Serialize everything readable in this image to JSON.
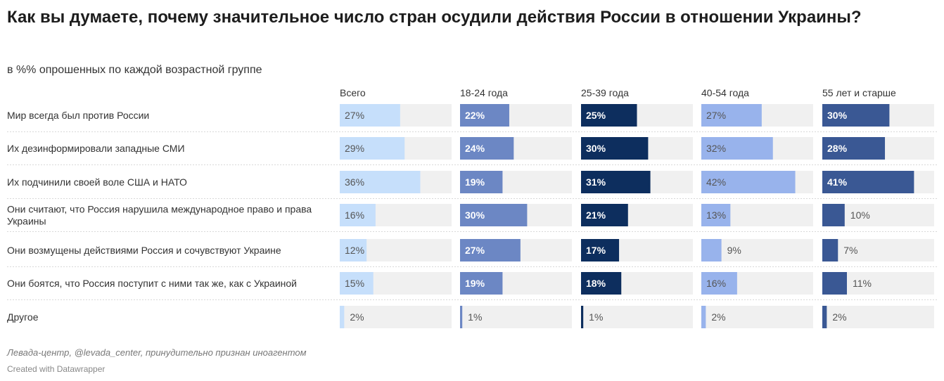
{
  "title": "Как вы думаете, почему значительное число стран осудили действия России в отношении Украины?",
  "subtitle": "в %% опрошенных по каждой возрастной группе",
  "source": "Левада-центр, @levada_center, принудительно признан иноагентом",
  "credit": "Created with Datawrapper",
  "chart_data": {
    "type": "bar",
    "unit": "%",
    "xlim": [
      0,
      50
    ],
    "categories": [
      "Мир всегда был против России",
      "Их дезинформировали западные СМИ",
      "Их подчинили своей воле США и НАТО",
      "Они считают, что Россия нарушила международное право и права Украины",
      "Они возмущены действиями Россия и сочувствуют Украине",
      "Они боятся, что Россия поступит с ними так же, как с Украиной",
      "Другое"
    ],
    "series": [
      {
        "name": "Всего",
        "color": "#c6dffb",
        "values": [
          27,
          29,
          36,
          16,
          12,
          15,
          2
        ]
      },
      {
        "name": "18-24 года",
        "color": "#6c87c4",
        "values": [
          22,
          24,
          19,
          30,
          27,
          19,
          1
        ]
      },
      {
        "name": "25-39 года",
        "color": "#0d2e5e",
        "values": [
          25,
          30,
          31,
          21,
          17,
          18,
          1
        ]
      },
      {
        "name": "40-54 года",
        "color": "#98b3ec",
        "values": [
          27,
          32,
          42,
          13,
          9,
          16,
          2
        ]
      },
      {
        "name": "55 лет и старше",
        "color": "#3a5894",
        "values": [
          30,
          28,
          41,
          10,
          7,
          11,
          2
        ]
      }
    ]
  }
}
